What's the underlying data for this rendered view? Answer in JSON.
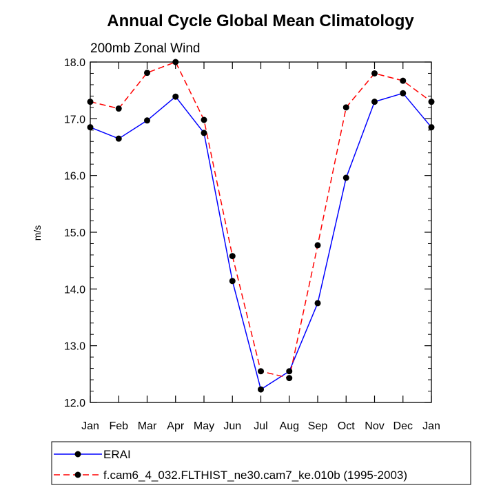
{
  "chart_data": {
    "type": "line",
    "title": "Annual Cycle Global Mean Climatology",
    "subtitle": "200mb Zonal Wind",
    "xlabel": "",
    "ylabel": "m/s",
    "ylim": [
      12.0,
      18.0
    ],
    "y_ticks": [
      "12.0",
      "13.0",
      "14.0",
      "15.0",
      "16.0",
      "17.0",
      "18.0"
    ],
    "categories": [
      "Jan",
      "Feb",
      "Mar",
      "Apr",
      "May",
      "Jun",
      "Jul",
      "Aug",
      "Sep",
      "Oct",
      "Nov",
      "Dec",
      "Jan"
    ],
    "grid": false,
    "legend_position": "bottom",
    "series": [
      {
        "name": "ERAI",
        "color": "#0000ff",
        "style": "solid",
        "marker": "filled-circle",
        "values": [
          16.85,
          16.65,
          16.97,
          17.39,
          16.75,
          14.14,
          12.23,
          12.55,
          13.75,
          15.96,
          17.3,
          17.45,
          16.85
        ]
      },
      {
        "name": "f.cam6_4_032.FLTHIST_ne30.cam7_ke.010b (1995-2003)",
        "color": "#ff0000",
        "style": "dashed",
        "marker": "filled-circle",
        "values": [
          17.3,
          17.18,
          17.81,
          18.0,
          16.98,
          14.58,
          12.55,
          12.43,
          14.77,
          17.2,
          17.8,
          17.67,
          17.3
        ]
      }
    ]
  }
}
